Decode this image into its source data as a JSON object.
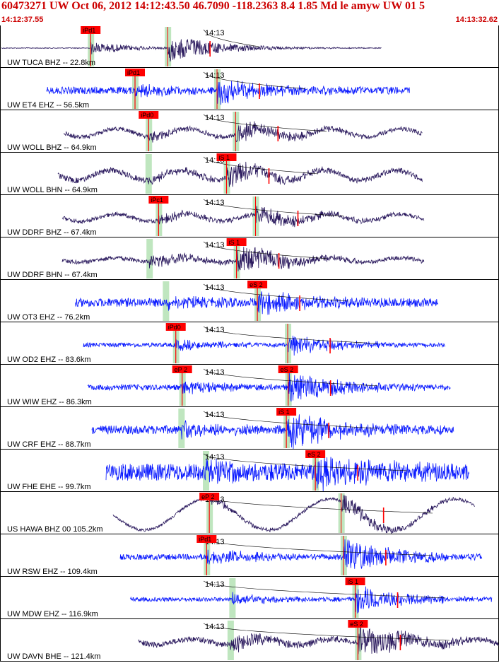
{
  "header": {
    "title": "60473271 UW Oct 06, 2012 14:12:43.50   46.7090 -118.2363  8.4 1.85 Md le amyw UW 01   5",
    "start_time": "14:12:37.55",
    "end_time": "14:13:32.62"
  },
  "colors": {
    "vertical_trace": "#2b1a5e",
    "other_trace": "#0a1aff",
    "pick_box": "#ff0000",
    "pick_window": "#bfe6bf",
    "pick_line": "#ff0000",
    "separator": "#000000",
    "header_text": "#cc0000"
  },
  "chart_data": {
    "type": "line",
    "title": "",
    "x_range": [
      "14:12:37.55",
      "14:13:32.62"
    ],
    "minute_tick_label": "14:13",
    "traces": [
      {
        "label": "UW TUCA BHZ -- 22.8km",
        "color_key": "vertical_trace",
        "picks": [
          {
            "phase": "iPd1",
            "t": 10.0
          }
        ]
      },
      {
        "label": "UW ET4 EHZ -- 56.5km",
        "color_key": "other_trace",
        "picks": [
          {
            "phase": "iPd1",
            "t": 14.9
          }
        ]
      },
      {
        "label": "UW WOLL BHZ -- 64.9km",
        "color_key": "vertical_trace",
        "picks": [
          {
            "phase": "iPd0",
            "t": 16.4
          }
        ]
      },
      {
        "label": "UW WOLL BHN -- 64.9km",
        "color_key": "vertical_trace",
        "picks": [
          {
            "phase": "iS 1",
            "t": 25.0
          }
        ]
      },
      {
        "label": "UW DDRF BHZ -- 67.4km",
        "color_key": "vertical_trace",
        "picks": [
          {
            "phase": "iPc1",
            "t": 17.5
          }
        ]
      },
      {
        "label": "UW DDRF BHN -- 67.4km",
        "color_key": "vertical_trace",
        "picks": [
          {
            "phase": "iS 1",
            "t": 26.1
          }
        ]
      },
      {
        "label": "UW OT3 EHZ -- 76.2km",
        "color_key": "other_trace",
        "picks": [
          {
            "phase": "eS 2",
            "t": 28.4
          }
        ]
      },
      {
        "label": "UW OD2 EHZ -- 83.6km",
        "color_key": "other_trace",
        "picks": [
          {
            "phase": "iPd0",
            "t": 19.4
          }
        ]
      },
      {
        "label": "UW WIW EHZ -- 86.3km",
        "color_key": "other_trace",
        "picks": [
          {
            "phase": "eP 2",
            "t": 20.1
          },
          {
            "phase": "eS 2",
            "t": 31.8
          }
        ]
      },
      {
        "label": "UW CRF EHZ -- 88.7km",
        "color_key": "other_trace",
        "picks": [
          {
            "phase": "iS 1",
            "t": 31.6
          }
        ]
      },
      {
        "label": "UW FHE EHE -- 99.7km",
        "color_key": "other_trace",
        "picks": [
          {
            "phase": "eS 2",
            "t": 34.8
          }
        ]
      },
      {
        "label": "US HAWA BHZ 00 105.2km",
        "color_key": "vertical_trace",
        "picks": [
          {
            "phase": "eP 2",
            "t": 23.1
          }
        ]
      },
      {
        "label": "UW RSW EHZ -- 109.4km",
        "color_key": "other_trace",
        "picks": [
          {
            "phase": "iPd1",
            "t": 22.8
          }
        ]
      },
      {
        "label": "UW MDW EHZ -- 116.9km",
        "color_key": "other_trace",
        "picks": [
          {
            "phase": "iS 1",
            "t": 39.2
          }
        ]
      },
      {
        "label": "UW DAVN BHE -- 121.4km",
        "color_key": "vertical_trace",
        "picks": [
          {
            "phase": "eS 2",
            "t": 39.5
          }
        ]
      }
    ]
  }
}
